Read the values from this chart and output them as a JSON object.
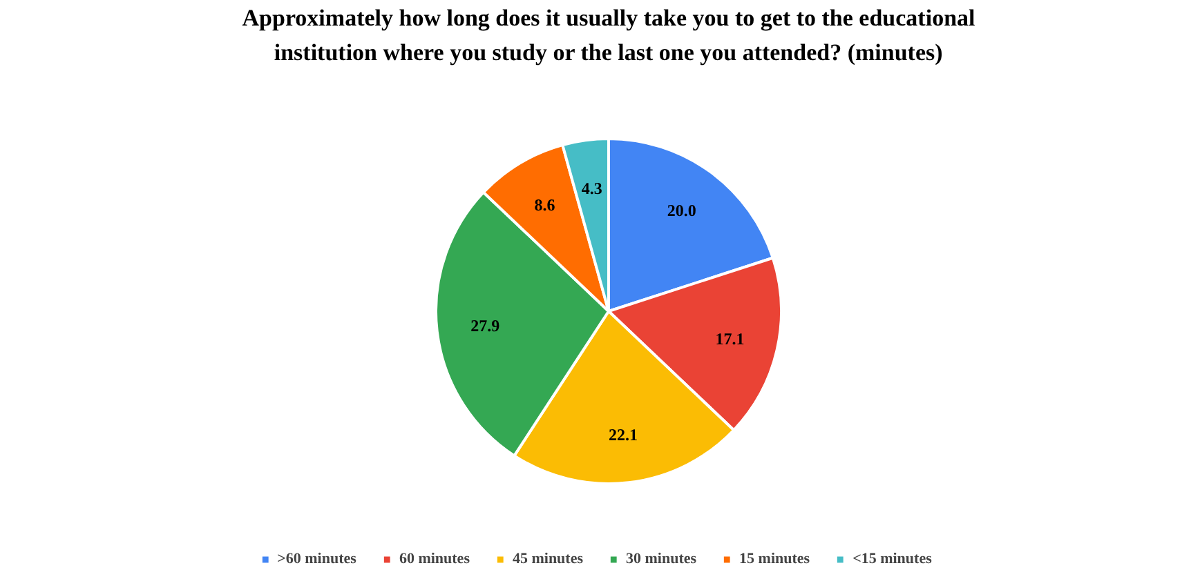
{
  "chart_data": {
    "type": "pie",
    "title": "Approximately how long does it usually take you to get to the educational institution where you study or the last one you attended? (minutes)",
    "categories": [
      ">60 minutes",
      "60 minutes",
      "45 minutes",
      "30 minutes",
      "15 minutes",
      "<15 minutes"
    ],
    "values": [
      20.0,
      17.1,
      22.1,
      27.9,
      8.6,
      4.3
    ],
    "colors": [
      "#4285f4",
      "#ea4335",
      "#fbbc04",
      "#34a853",
      "#ff6d01",
      "#46bdc6"
    ],
    "value_labels": [
      "20.0",
      "17.1",
      "22.1",
      "27.9",
      "8.6",
      "4.3"
    ],
    "legend": "bottom"
  }
}
